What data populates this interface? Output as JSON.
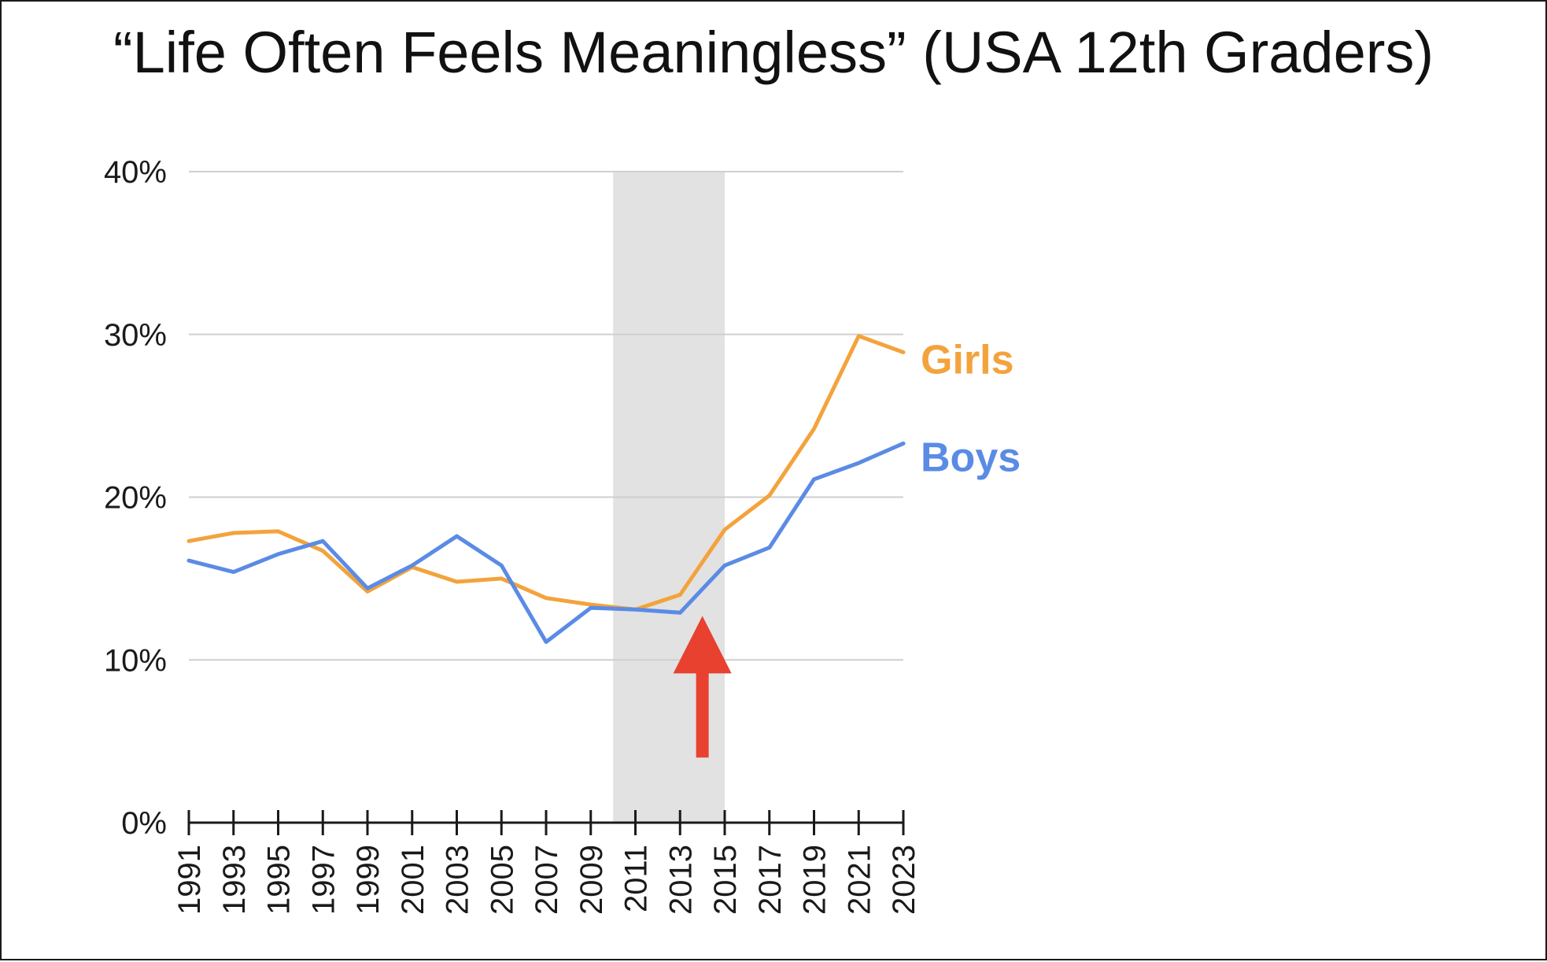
{
  "chart_data": {
    "type": "line",
    "title": "“Life Often Feels Meaningless” (USA 12th Graders)",
    "xlabel": "",
    "ylabel": "",
    "x": [
      1991,
      1993,
      1995,
      1997,
      1999,
      2001,
      2003,
      2005,
      2007,
      2009,
      2011,
      2013,
      2015,
      2017,
      2019,
      2021,
      2023
    ],
    "x_tick_labels": [
      "1991",
      "1993",
      "1995",
      "1997",
      "1999",
      "2001",
      "2003",
      "2005",
      "2007",
      "2009",
      "2011",
      "2013",
      "2015",
      "2017",
      "2019",
      "2021",
      "2023"
    ],
    "ylim": [
      0,
      40
    ],
    "y_ticks": [
      0,
      10,
      20,
      30,
      40
    ],
    "y_tick_labels": [
      "0%",
      "10%",
      "20%",
      "30%",
      "40%"
    ],
    "grid": true,
    "series": [
      {
        "name": "Girls",
        "color": "#f3a33c",
        "values": [
          17.3,
          17.8,
          17.9,
          16.7,
          14.2,
          15.7,
          14.8,
          15.0,
          13.8,
          13.4,
          13.1,
          14.0,
          18.0,
          20.1,
          24.2,
          29.9,
          28.9
        ]
      },
      {
        "name": "Boys",
        "color": "#5a8be5",
        "values": [
          16.1,
          15.4,
          16.5,
          17.3,
          14.4,
          15.8,
          17.6,
          15.8,
          11.1,
          13.2,
          13.1,
          12.9,
          15.8,
          16.9,
          21.1,
          22.1,
          23.3
        ]
      }
    ],
    "annotations": [
      {
        "type": "shaded-band",
        "x_from": 2010,
        "x_to": 2015,
        "color": "#e2e2e2"
      },
      {
        "type": "arrow",
        "x": 2014,
        "y_from": 4,
        "y_to": 12.7,
        "color": "#e8412f"
      }
    ]
  }
}
